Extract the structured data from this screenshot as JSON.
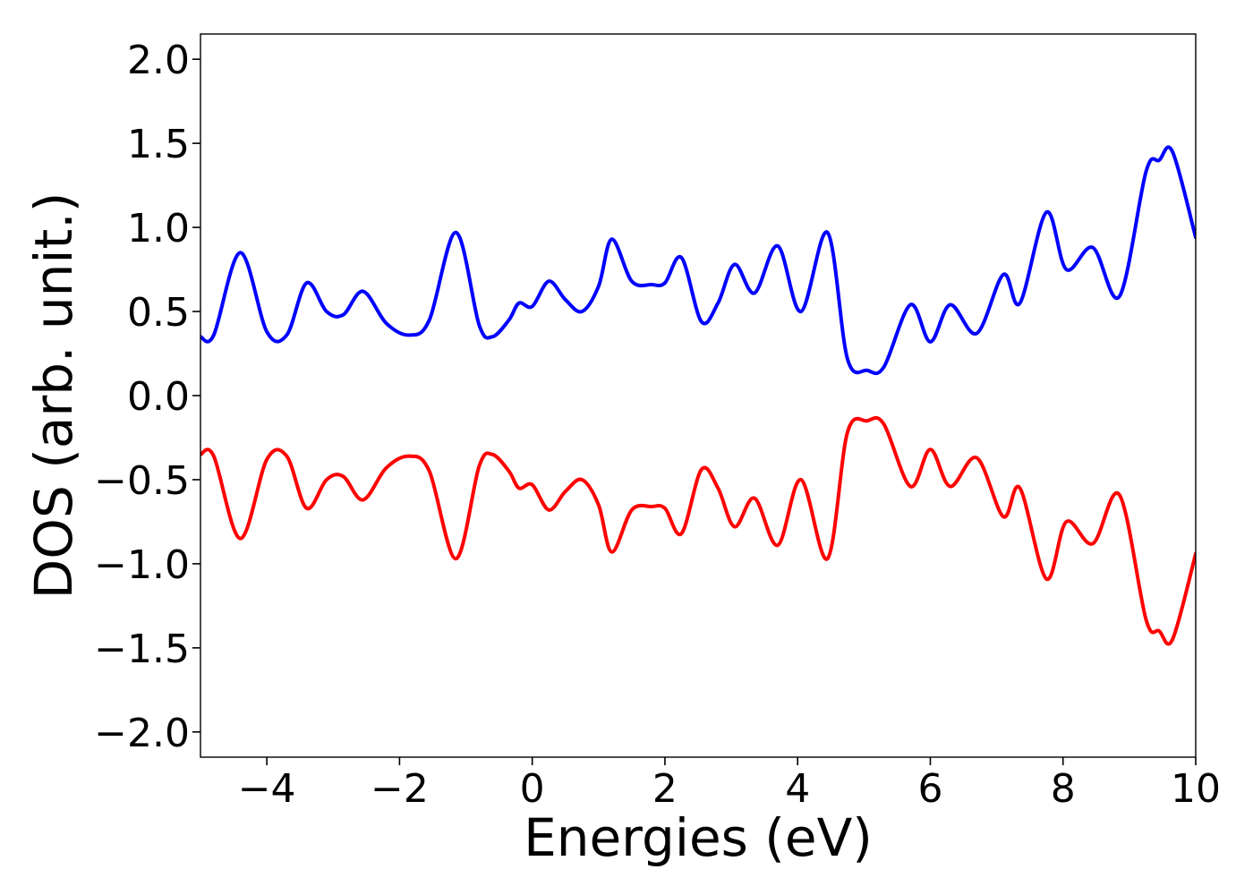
{
  "chart_data": {
    "type": "line",
    "title": "",
    "xlabel": "Energies (eV)",
    "ylabel": "DOS (arb. unit.)",
    "xlim": [
      -5,
      10
    ],
    "ylim": [
      -2.15,
      2.15
    ],
    "x_ticks": [
      -4,
      -2,
      0,
      2,
      4,
      6,
      8,
      10
    ],
    "x_tick_labels": [
      "−4",
      "−2",
      "0",
      "2",
      "4",
      "6",
      "8",
      "10"
    ],
    "y_ticks": [
      2.0,
      1.5,
      1.0,
      0.5,
      0.0,
      -0.5,
      -1.0,
      -1.5,
      -2.0
    ],
    "y_tick_labels": [
      "2.0",
      "1.5",
      "1.0",
      "0.5",
      "0.0",
      "−0.5",
      "−1.0",
      "−1.5",
      "−2.0"
    ],
    "grid": false,
    "legend": "none",
    "x": [
      -5.0,
      -4.8,
      -4.4,
      -4.0,
      -3.7,
      -3.4,
      -3.1,
      -2.85,
      -2.55,
      -2.2,
      -1.85,
      -1.55,
      -1.15,
      -0.8,
      -0.6,
      -0.35,
      -0.2,
      0.0,
      0.25,
      0.5,
      0.75,
      1.0,
      1.2,
      1.5,
      1.8,
      2.0,
      2.25,
      2.55,
      2.8,
      3.05,
      3.35,
      3.7,
      4.05,
      4.45,
      4.75,
      5.05,
      5.3,
      5.7,
      6.0,
      6.3,
      6.7,
      7.1,
      7.35,
      7.75,
      8.05,
      8.45,
      8.85,
      9.25,
      9.45,
      9.65,
      10.0
    ],
    "series": [
      {
        "color": "#0000ff",
        "values": [
          0.35,
          0.36,
          0.85,
          0.38,
          0.36,
          0.67,
          0.5,
          0.48,
          0.62,
          0.43,
          0.36,
          0.45,
          0.97,
          0.42,
          0.35,
          0.45,
          0.55,
          0.53,
          0.68,
          0.57,
          0.5,
          0.65,
          0.93,
          0.68,
          0.66,
          0.67,
          0.82,
          0.44,
          0.55,
          0.78,
          0.61,
          0.89,
          0.5,
          0.97,
          0.22,
          0.15,
          0.17,
          0.54,
          0.32,
          0.54,
          0.37,
          0.72,
          0.55,
          1.09,
          0.75,
          0.88,
          0.59,
          1.33,
          1.4,
          1.45,
          0.94
        ]
      },
      {
        "color": "#ff0000",
        "values": [
          -0.35,
          -0.36,
          -0.85,
          -0.38,
          -0.36,
          -0.67,
          -0.5,
          -0.48,
          -0.62,
          -0.43,
          -0.36,
          -0.45,
          -0.97,
          -0.42,
          -0.35,
          -0.45,
          -0.55,
          -0.53,
          -0.68,
          -0.57,
          -0.5,
          -0.65,
          -0.93,
          -0.68,
          -0.66,
          -0.67,
          -0.82,
          -0.44,
          -0.55,
          -0.78,
          -0.61,
          -0.89,
          -0.5,
          -0.97,
          -0.22,
          -0.15,
          -0.17,
          -0.54,
          -0.32,
          -0.54,
          -0.37,
          -0.72,
          -0.55,
          -1.09,
          -0.75,
          -0.88,
          -0.59,
          -1.33,
          -1.4,
          -1.45,
          -0.94
        ]
      }
    ]
  }
}
